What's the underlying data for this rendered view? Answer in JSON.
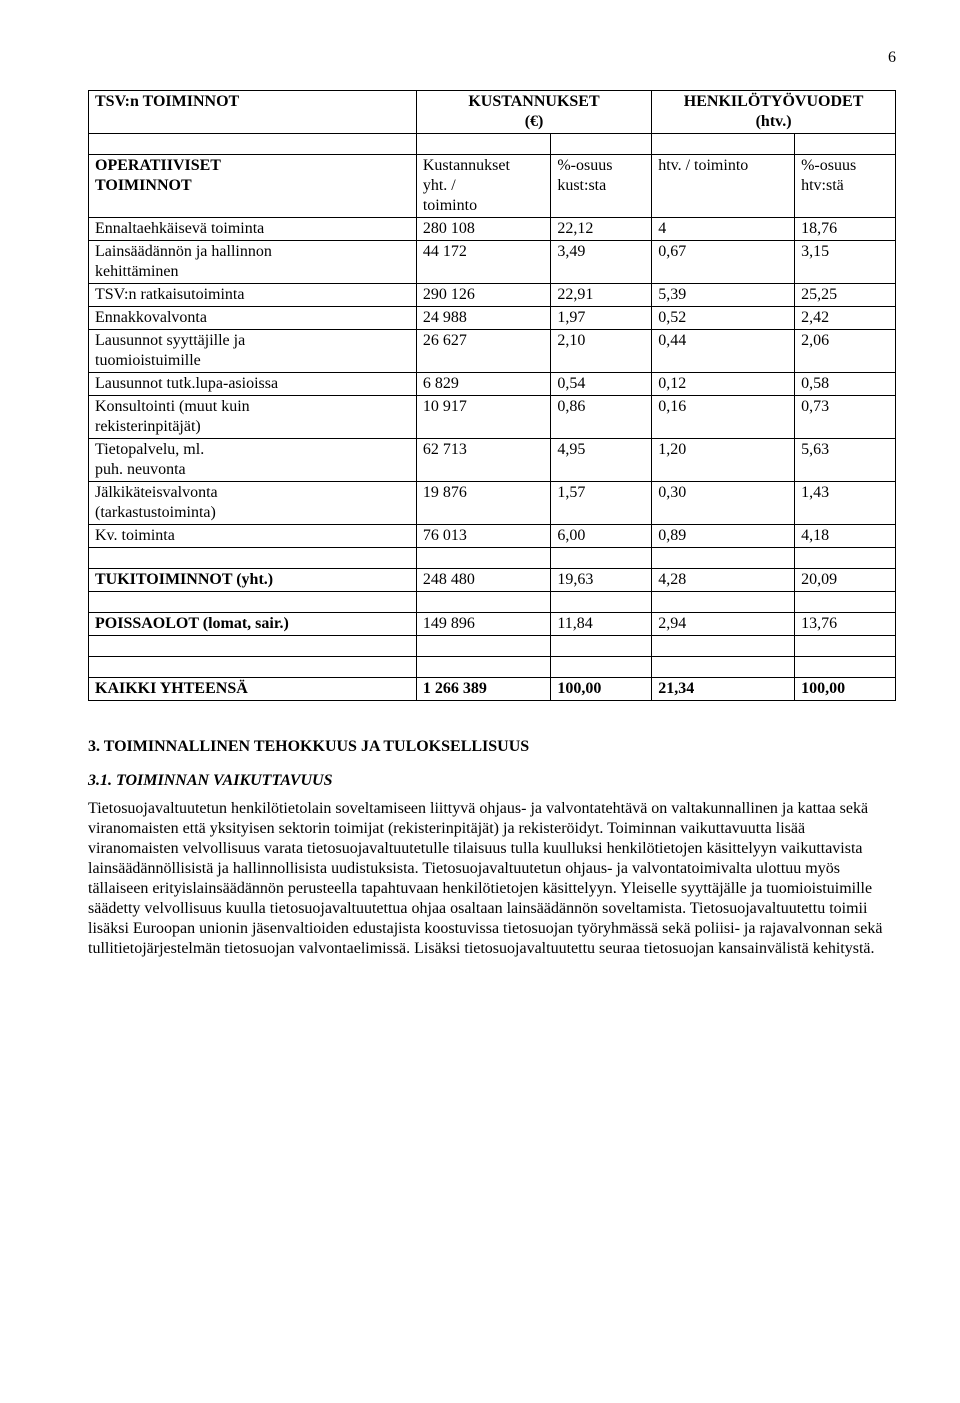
{
  "page_number": "6",
  "header": {
    "col0": "TSV:n TOIMINNOT",
    "col12_line1": "KUSTANNUKSET",
    "col12_line2": "(€)",
    "col34_line1": "HENKILÖTYÖVUODET",
    "col34_line2": "(htv.)"
  },
  "subheader": {
    "col0_line1": "OPERATIIVISET",
    "col0_line2": "TOIMINNOT",
    "col1_line1": "Kustannukset",
    "col1_line2": "yht. /",
    "col1_line3": "toiminto",
    "col2_line1": "%-osuus",
    "col2_line2": "kust:sta",
    "col3": "htv. / toiminto",
    "col4_line1": "%-osuus",
    "col4_line2": "htv:stä"
  },
  "rows": [
    {
      "label": "Ennaltaehkäisevä toiminta",
      "c1": "280 108",
      "c2": "22,12",
      "c3": "4",
      "c4": "18,76"
    },
    {
      "label_l1": "Lainsäädännön ja hallinnon",
      "label_l2": "kehittäminen",
      "c1": "44 172",
      "c2": "3,49",
      "c3": "0,67",
      "c4": "3,15"
    },
    {
      "label": "TSV:n ratkaisutoiminta",
      "c1": "290 126",
      "c2": "22,91",
      "c3": "5,39",
      "c4": "25,25"
    },
    {
      "label": "Ennakkovalvonta",
      "c1": "24 988",
      "c2": "1,97",
      "c3": "0,52",
      "c4": "2,42"
    },
    {
      "label_l1": "Lausunnot syyttäjille ja",
      "label_l2": "tuomioistuimille",
      "c1": "26 627",
      "c2": "2,10",
      "c3": "0,44",
      "c4": "2,06"
    },
    {
      "label": "Lausunnot tutk.lupa-asioissa",
      "c1": "6 829",
      "c2": "0,54",
      "c3": "0,12",
      "c4": "0,58"
    },
    {
      "label_l1": "Konsultointi (muut kuin",
      "label_l2": "rekisterinpitäjät)",
      "c1": "10 917",
      "c2": "0,86",
      "c3": "0,16",
      "c4": "0,73"
    },
    {
      "label_l1": "Tietopalvelu, ml.",
      "label_l2": "puh. neuvonta",
      "c1": "62 713",
      "c2": "4,95",
      "c3": "1,20",
      "c4": "5,63"
    },
    {
      "label_l1": "Jälkikäteisvalvonta",
      "label_l2": "(tarkastustoiminta)",
      "c1": "19 876",
      "c2": "1,57",
      "c3": "0,30",
      "c4": "1,43"
    },
    {
      "label": "Kv. toiminta",
      "c1": "76 013",
      "c2": "6,00",
      "c3": "0,89",
      "c4": "4,18"
    }
  ],
  "tuki": {
    "label": "TUKITOIMINNOT (yht.)",
    "c1": "248 480",
    "c2": "19,63",
    "c3": "4,28",
    "c4": "20,09"
  },
  "poissa": {
    "label": "POISSAOLOT (lomat, sair.)",
    "c1": "149 896",
    "c2": "11,84",
    "c3": "2,94",
    "c4": "13,76"
  },
  "kaikki": {
    "label": "KAIKKI YHTEENSÄ",
    "c1": "1 266 389",
    "c2": "100,00",
    "c3": "21,34",
    "c4": "100,00"
  },
  "section3": "3. TOIMINNALLINEN TEHOKKUUS JA TULOKSELLISUUS",
  "section31": "3.1. TOIMINNAN VAIKUTTAVUUS",
  "paragraph": "Tietosuojavaltuutetun henkilötietolain soveltamiseen liittyvä ohjaus- ja  valvontatehtävä on valtakunnallinen ja kattaa sekä viranomaisten että yksityisen sektorin toimijat (rekisterinpitäjät) ja rekisteröidyt. Toiminnan vaikuttavuutta  lisää viranomaisten velvollisuus varata tietosuojavaltuutetulle tilaisuus tulla kuulluksi henkilötietojen  käsittelyyn vaikuttavista lainsäädännöllisistä ja hallinnollisista uudistuksista. Tietosuojavaltuutetun ohjaus- ja valvontatoimivalta ulottuu myös tällaiseen erityislainsäädännön perusteella tapahtuvaan henkilötietojen käsittelyyn. Yleiselle syyttäjälle ja tuomioistuimille säädetty velvollisuus kuulla tietosuojavaltuutettua ohjaa osaltaan lainsäädännön soveltamista. Tietosuojavaltuutettu  toimii lisäksi Euroopan unionin jäsenvaltioiden edustajista koostuvissa tietosuojan työryhmässä sekä poliisi- ja rajavalvonnan sekä tullitietojärjestelmän tietosuojan valvontaelimissä. Lisäksi tietosuojavaltuutettu seuraa tietosuojan kansainvälistä kehitystä."
}
